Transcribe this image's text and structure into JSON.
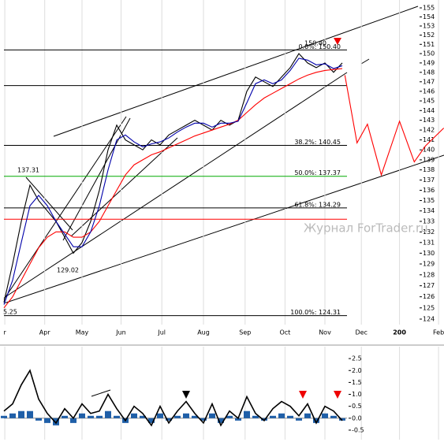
{
  "chart_data": [
    {
      "type": "line",
      "ylog": true,
      "ylim": [
        124,
        155
      ],
      "yticks": [
        124,
        125,
        126,
        127,
        128,
        129,
        130,
        131,
        132,
        133,
        134,
        135,
        136,
        137,
        138,
        139,
        140,
        141,
        142,
        143,
        144,
        145,
        146,
        147,
        148,
        149,
        150,
        151,
        152,
        153,
        154,
        155
      ],
      "xlim": [
        0,
        50.7
      ],
      "xticks": [
        {
          "value": 0.1,
          "label": "r"
        },
        {
          "value": 4.7,
          "label": "Apr"
        },
        {
          "value": 9.0,
          "label": "May"
        },
        {
          "value": 13.5,
          "label": "Jun"
        },
        {
          "value": 18.2,
          "label": "Jul"
        },
        {
          "value": 23.0,
          "label": "Aug"
        },
        {
          "value": 27.8,
          "label": "Sep"
        },
        {
          "value": 32.4,
          "label": "Oct"
        },
        {
          "value": 37.0,
          "label": "Nov"
        },
        {
          "value": 41.2,
          "label": "Dec"
        },
        {
          "value": 45.6,
          "label": "200"
        },
        {
          "value": 50.1,
          "label": "Feb"
        }
      ],
      "xgrid": true,
      "x": [
        0,
        1,
        2,
        3,
        4,
        5,
        6,
        7,
        8,
        9,
        10,
        11,
        12,
        13,
        14,
        15,
        16,
        17,
        18,
        19,
        20,
        21,
        22,
        23,
        24,
        25,
        26,
        27,
        28,
        29,
        30,
        31,
        32,
        33,
        34,
        35,
        36,
        37,
        38,
        39
      ],
      "series": [
        {
          "color": "#000000",
          "values": [
            125.5,
            129,
            133,
            136.5,
            135,
            134,
            133,
            131.5,
            130,
            131,
            133,
            136,
            140,
            142.5,
            141,
            140.5,
            140,
            141,
            140.5,
            141.5,
            142,
            142.5,
            143,
            142.5,
            142,
            143,
            142.5,
            143,
            146,
            147.5,
            147,
            146.5,
            147.5,
            148.5,
            150,
            149,
            148.5,
            149,
            148,
            149
          ]
        },
        {
          "color": "#ff0000",
          "values": [
            125,
            126,
            127.5,
            129,
            130.5,
            131.5,
            132,
            132,
            131.5,
            131.5,
            132,
            133,
            134.5,
            136,
            137.5,
            138.5,
            139,
            139.5,
            139.8,
            140.2,
            140.6,
            141,
            141.4,
            141.7,
            142,
            142.3,
            142.6,
            143,
            143.8,
            144.6,
            145.3,
            145.8,
            146.3,
            146.8,
            147.3,
            147.7,
            148,
            148.2,
            148.3,
            148.4
          ]
        },
        {
          "color": "#0000aa",
          "values": [
            125.3,
            127.5,
            131,
            134.5,
            135.5,
            134.5,
            133,
            131.8,
            130.6,
            130.6,
            132,
            134.5,
            138,
            141,
            141.5,
            140.8,
            140.3,
            140.6,
            140.8,
            141.2,
            141.8,
            142.3,
            142.7,
            142.7,
            142.3,
            142.7,
            142.7,
            142.9,
            144.8,
            146.8,
            147.2,
            146.8,
            147.2,
            148.2,
            149.5,
            149.3,
            148.8,
            148.9,
            148.4,
            148.7
          ]
        },
        {
          "color": "#ff0000",
          "x": [
            39.3,
            40.7,
            41.9,
            43.5,
            45.6,
            47.3,
            48.6,
            50.7
          ],
          "values": [
            147.7,
            140.7,
            142.6,
            137.5,
            142.9,
            138.8,
            140.4,
            142.2
          ]
        }
      ],
      "levels": [
        {
          "label": "0.0%: 150.40",
          "value": 150.4,
          "color": "#000000"
        },
        {
          "value": 146.6,
          "color": "#000000"
        },
        {
          "label": "38.2%: 140.45",
          "value": 140.45,
          "color": "#000000"
        },
        {
          "label": "50.0%: 137.37",
          "value": 137.37,
          "color": "#00aa00"
        },
        {
          "label": "61.8%: 134.29",
          "value": 134.29,
          "color": "#000000"
        },
        {
          "value": 133.2,
          "color": "#ff0000"
        },
        {
          "label": "100.0%: 124.31",
          "value": 124.31,
          "color": "#000000"
        }
      ],
      "annotations": [
        "137.31",
        "129.02",
        "150.40",
        "5.25"
      ],
      "watermark": "Журнал ForTrader.ru"
    },
    {
      "type": "line",
      "ylim": [
        -0.7,
        2.9
      ],
      "yticks": [
        -0.5,
        {
          "value": 0,
          "label": "0.0"
        },
        0.5,
        {
          "value": 1,
          "label": "1.0"
        },
        1.5,
        {
          "value": 2,
          "label": "2.0"
        },
        2.5
      ],
      "xlim": [
        0,
        50.7
      ],
      "x": [
        0,
        1,
        2,
        3,
        4,
        5,
        6,
        7,
        8,
        9,
        10,
        11,
        12,
        13,
        14,
        15,
        16,
        17,
        18,
        19,
        20,
        21,
        22,
        23,
        24,
        25,
        26,
        27,
        28,
        29,
        30,
        31,
        32,
        33,
        34,
        35,
        36,
        37,
        38,
        39
      ],
      "series": [
        {
          "color": "#1f5fa8",
          "style": "bar",
          "values": [
            0.1,
            0.2,
            0.3,
            0.3,
            -0.1,
            -0.2,
            -0.3,
            0.1,
            -0.2,
            0.2,
            0.1,
            0.1,
            0.3,
            0.1,
            -0.2,
            0.2,
            0.1,
            -0.2,
            0.2,
            -0.1,
            0.1,
            0.2,
            0.1,
            -0.1,
            0.2,
            -0.2,
            0.1,
            -0.1,
            0.3,
            0.1,
            -0.1,
            0.1,
            0.2,
            0.1,
            -0.1,
            0.2,
            -0.2,
            0.2,
            0.1,
            -0.1
          ]
        },
        {
          "color": "#000000",
          "values": [
            0.3,
            0.6,
            1.4,
            2.0,
            0.8,
            0.2,
            -0.2,
            0.4,
            0.0,
            0.6,
            0.2,
            0.3,
            1.0,
            0.4,
            -0.1,
            0.5,
            0.2,
            -0.3,
            0.5,
            -0.2,
            0.3,
            0.7,
            0.2,
            -0.2,
            0.6,
            -0.3,
            0.3,
            0.0,
            0.9,
            0.2,
            -0.1,
            0.4,
            0.7,
            0.5,
            0.1,
            0.6,
            -0.2,
            0.5,
            0.3,
            -0.1
          ]
        }
      ]
    }
  ]
}
